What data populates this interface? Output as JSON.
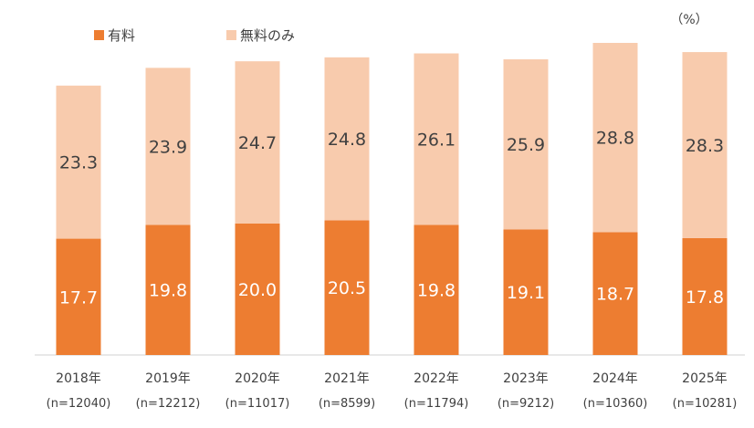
{
  "chart_data": {
    "type": "bar",
    "stacked": true,
    "unit_label": "（%）",
    "categories": [
      "2018年",
      "2019年",
      "2020年",
      "2021年",
      "2022年",
      "2023年",
      "2024年",
      "2025年"
    ],
    "sample_sizes": [
      "(n=12040)",
      "(n=12212)",
      "(n=11017)",
      "(n=8599)",
      "(n=11794)",
      "(n=9212)",
      "(n=10360)",
      "(n=10281)"
    ],
    "series": [
      {
        "name": "有料",
        "color": "#ED7D31",
        "label_color": "#ffffff",
        "values": [
          17.7,
          19.8,
          20.0,
          20.5,
          19.8,
          19.1,
          18.7,
          17.8
        ]
      },
      {
        "name": "無料のみ",
        "color": "#F8CBAD",
        "label_color": "#404040",
        "values": [
          23.3,
          23.9,
          24.7,
          24.8,
          26.1,
          25.9,
          28.8,
          28.3
        ]
      }
    ],
    "legend_position": "top-left",
    "grid": false
  }
}
